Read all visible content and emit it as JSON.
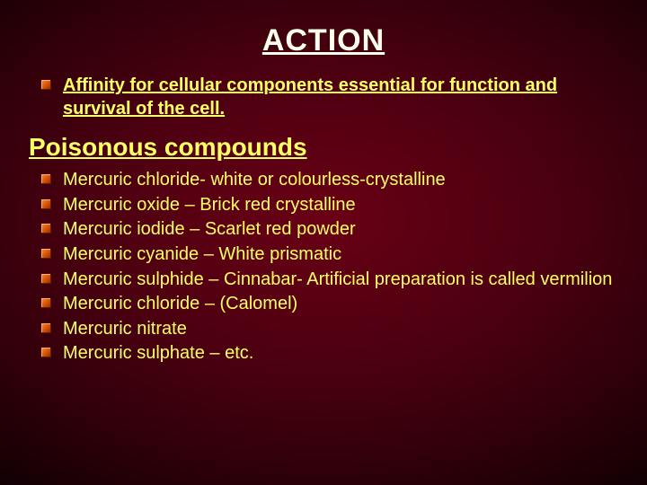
{
  "title": "ACTION",
  "subheading": "Affinity for cellular components essential for function and survival of the cell.",
  "section_heading": "Poisonous compounds",
  "compounds": [
    "Mercuric chloride- white or colourless-crystalline",
    "Mercuric oxide – Brick red crystalline",
    "Mercuric iodide – Scarlet red powder",
    "Mercuric cyanide – White prismatic",
    "Mercuric sulphide – Cinnabar- Artificial preparation is called vermilion",
    "Mercuric chloride – (Calomel)",
    "Mercuric nitrate",
    "Mercuric sulphate – etc."
  ],
  "colors": {
    "title": "#ffffee",
    "text": "#ffff66",
    "bullet": "#cc5500",
    "bg_center": "#6a0015",
    "bg_edge": "#000000"
  },
  "fonts": {
    "title_size": 34,
    "section_size": 28,
    "body_size": 20,
    "family": "Arial"
  }
}
